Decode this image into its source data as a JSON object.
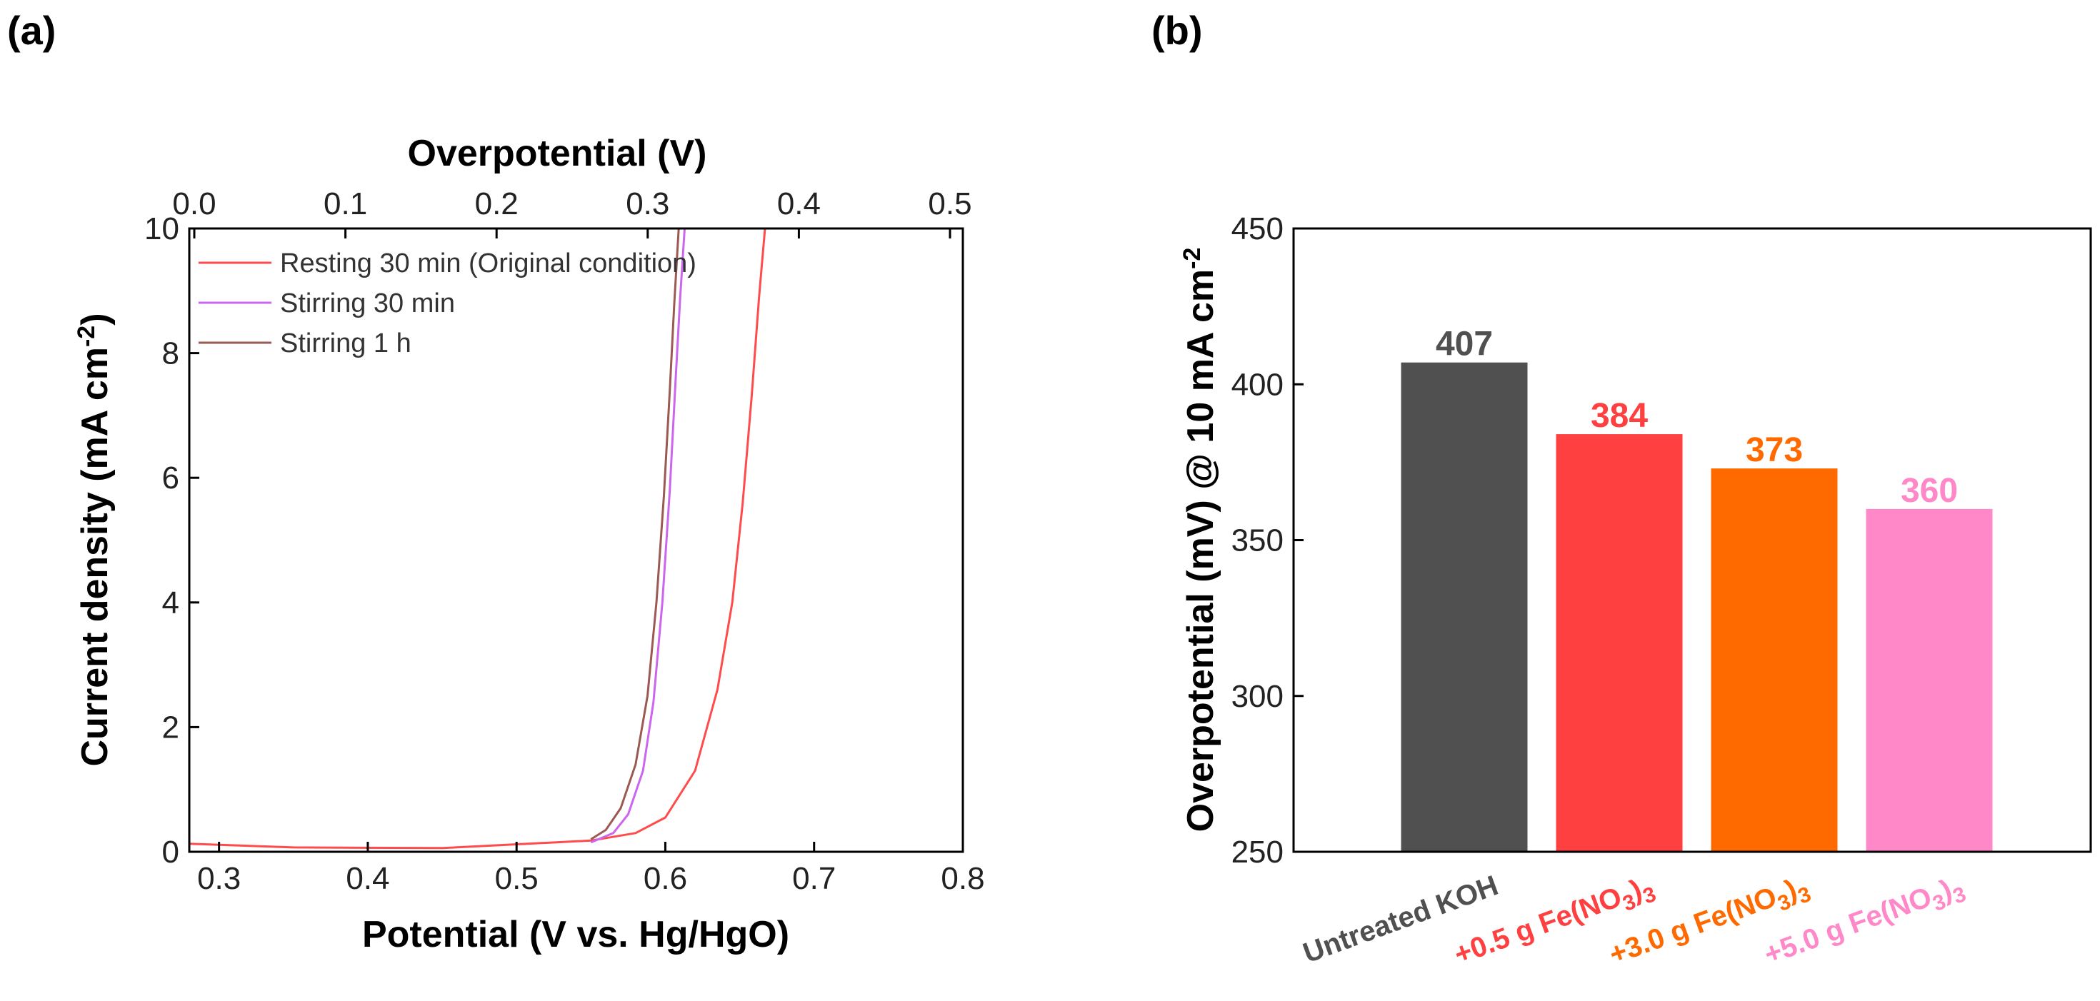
{
  "panels": {
    "a": {
      "label": "(a)"
    },
    "b": {
      "label": "(b)"
    }
  },
  "chart_data": [
    {
      "type": "line",
      "panel": "(a)",
      "xlabel": "Potential (V vs. Hg/HgO)",
      "ylabel": "Current density (mA cm-2)",
      "ylabel_main": "Current density (mA cm",
      "ylabel_sup": "-2",
      "ylabel_end": ")",
      "top_xlabel": "Overpotential (V)",
      "xlim": [
        0.28,
        0.8
      ],
      "ylim": [
        0,
        10
      ],
      "xticks": [
        0.3,
        0.4,
        0.5,
        0.6,
        0.7,
        0.8
      ],
      "xtick_labels": [
        "0.3",
        "0.4",
        "0.5",
        "0.6",
        "0.7",
        "0.8"
      ],
      "yticks": [
        0,
        2,
        4,
        6,
        8,
        10
      ],
      "ytick_labels": [
        "0",
        "2",
        "4",
        "6",
        "8",
        "10"
      ],
      "top_xlim": [
        0.0,
        0.5
      ],
      "top_xticks": [
        0.0,
        0.1,
        0.2,
        0.3,
        0.4,
        0.5
      ],
      "top_xtick_labels": [
        "0.0",
        "0.1",
        "0.2",
        "0.3",
        "0.4",
        "0.5"
      ],
      "legend_position": "top-left",
      "series": [
        {
          "name": "Resting 30 min (Original condition)",
          "color": "#ff4b4b",
          "x": [
            0.28,
            0.35,
            0.45,
            0.55,
            0.58,
            0.6,
            0.62,
            0.635,
            0.645,
            0.652,
            0.658,
            0.663,
            0.667
          ],
          "y": [
            0.13,
            0.07,
            0.06,
            0.18,
            0.3,
            0.55,
            1.3,
            2.6,
            4.0,
            5.6,
            7.3,
            8.9,
            10.0
          ]
        },
        {
          "name": "Stirring 30 min",
          "color": "#cc66ee",
          "x": [
            0.55,
            0.565,
            0.575,
            0.585,
            0.592,
            0.598,
            0.603,
            0.607,
            0.61,
            0.613
          ],
          "y": [
            0.15,
            0.3,
            0.6,
            1.3,
            2.4,
            4.0,
            5.8,
            7.6,
            8.9,
            10.0
          ]
        },
        {
          "name": "Stirring 1 h",
          "color": "#9a5a52",
          "x": [
            0.55,
            0.56,
            0.57,
            0.58,
            0.588,
            0.594,
            0.599,
            0.603,
            0.606,
            0.609
          ],
          "y": [
            0.2,
            0.35,
            0.7,
            1.4,
            2.5,
            4.0,
            5.7,
            7.4,
            8.8,
            10.0
          ]
        }
      ]
    },
    {
      "type": "bar",
      "panel": "(b)",
      "ylabel": "Overpotential (mV) @ 10 mA cm-2",
      "ylabel_main": "Overpotential (mV) @ 10 mA cm",
      "ylabel_sup": "-2",
      "ylim": [
        250,
        450
      ],
      "yticks": [
        250,
        300,
        350,
        400,
        450
      ],
      "ytick_labels": [
        "250",
        "300",
        "350",
        "400",
        "450"
      ],
      "categories": [
        "Untreated KOH",
        "+0.5 g Fe(NO3)3",
        "+3.0 g Fe(NO3)3",
        "+5.0 g Fe(NO3)3"
      ],
      "category_parts": [
        {
          "main": "Untreated KOH",
          "sub1": "",
          "mid": "",
          "sub2": ""
        },
        {
          "main": "+0.5 g Fe(NO",
          "sub1": "3",
          "mid": ")",
          "sub2": "3"
        },
        {
          "main": "+3.0 g Fe(NO",
          "sub1": "3",
          "mid": ")",
          "sub2": "3"
        },
        {
          "main": "+5.0 g Fe(NO",
          "sub1": "3",
          "mid": ")",
          "sub2": "3"
        }
      ],
      "values": [
        407,
        384,
        373,
        360
      ],
      "value_labels": [
        "407",
        "384",
        "373",
        "360"
      ],
      "colors": [
        "#505050",
        "#ff4040",
        "#ff6a00",
        "#ff88c8"
      ]
    }
  ]
}
